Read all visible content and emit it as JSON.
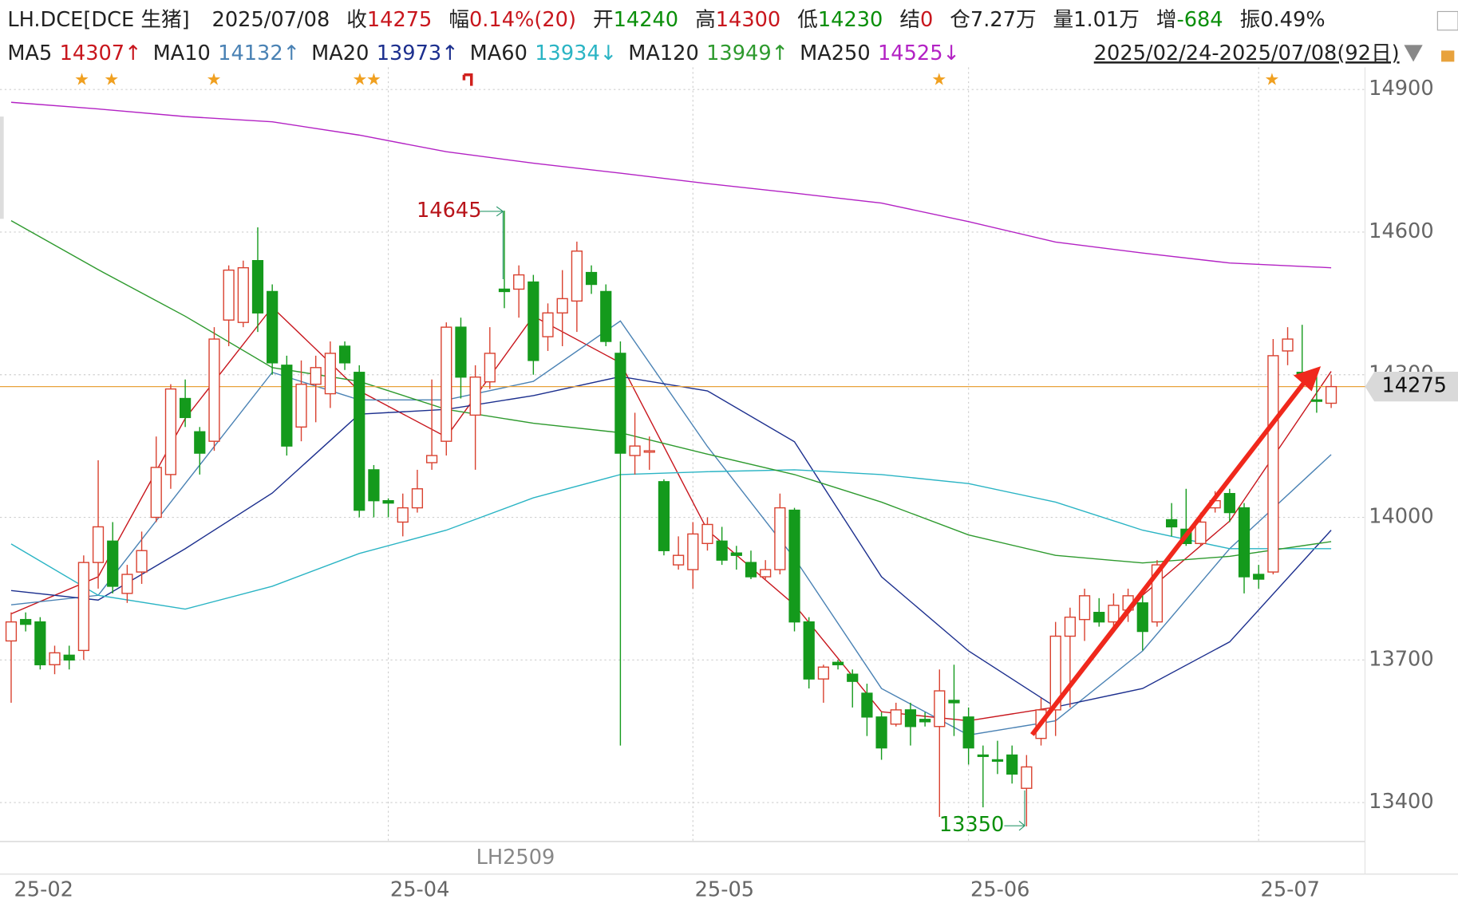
{
  "header": {
    "title": "LH.DCE[DCE 生猪]",
    "date": "2025/07/08",
    "items": [
      {
        "label": "收",
        "value": "14275",
        "color": "#c8161d"
      },
      {
        "label": "幅",
        "value": "0.14%(20)",
        "color": "#c8161d"
      },
      {
        "label": "开",
        "value": "14240",
        "color": "#0a8f0a"
      },
      {
        "label": "高",
        "value": "14300",
        "color": "#c8161d"
      },
      {
        "label": "低",
        "value": "14230",
        "color": "#0a8f0a"
      },
      {
        "label": "结",
        "value": "0",
        "color": "#c8161d"
      },
      {
        "label": "仓",
        "value": "7.27万",
        "color": "#222222"
      },
      {
        "label": "量",
        "value": "1.01万",
        "color": "#222222"
      },
      {
        "label": "增",
        "value": "-684",
        "color": "#0a8f0a"
      },
      {
        "label": "振",
        "value": "0.49%",
        "color": "#222222"
      }
    ],
    "range": "2025/02/24-2025/07/08(92日)"
  },
  "chart_data": {
    "type": "candlestick",
    "ylim": [
      13318,
      14931
    ],
    "yticks": [
      13400,
      13700,
      14000,
      14300,
      14600,
      14900
    ],
    "grid": true,
    "up_color": "#d9412f",
    "down_color": "#149a1c",
    "price_line_color": "#e8a23c",
    "categories": [
      "25-02",
      null,
      null,
      null,
      null,
      null,
      null,
      null,
      null,
      null,
      null,
      null,
      null,
      null,
      null,
      null,
      null,
      null,
      null,
      null,
      null,
      null,
      null,
      null,
      null,
      null,
      "25-04",
      null,
      null,
      null,
      null,
      null,
      null,
      null,
      null,
      null,
      null,
      null,
      null,
      null,
      null,
      null,
      null,
      null,
      null,
      null,
      null,
      "25-05",
      null,
      null,
      null,
      null,
      null,
      null,
      null,
      null,
      null,
      null,
      null,
      null,
      null,
      null,
      null,
      null,
      null,
      null,
      "25-06",
      null,
      null,
      null,
      null,
      null,
      null,
      null,
      null,
      null,
      null,
      null,
      null,
      null,
      null,
      null,
      null,
      null,
      null,
      null,
      "25-07",
      null,
      null,
      null,
      null,
      null
    ],
    "candles": {
      "open": [
        13740,
        13785,
        13780,
        13690,
        13710,
        13720,
        13905,
        13950,
        13840,
        13885,
        14000,
        14090,
        14250,
        14180,
        14160,
        14415,
        14410,
        14540,
        14475,
        14320,
        14190,
        14280,
        14260,
        14360,
        14305,
        14100,
        14035,
        13990,
        14020,
        14115,
        14160,
        14400,
        14215,
        14285,
        14480,
        14480,
        14495,
        14380,
        14430,
        14455,
        14515,
        14475,
        14345,
        14130,
        14140,
        14075,
        13900,
        13890,
        13945,
        13950,
        13925,
        13905,
        13875,
        13890,
        14015,
        13780,
        13660,
        13695,
        13670,
        13630,
        13580,
        13565,
        13595,
        13575,
        13560,
        13615,
        13580,
        13500,
        13490,
        13500,
        13430,
        13535,
        13595,
        13750,
        13785,
        13800,
        13780,
        13805,
        13820,
        13780,
        13995,
        13975,
        13945,
        14020,
        14050,
        14020,
        13880,
        13885,
        14350,
        14305,
        14247,
        14240
      ],
      "high": [
        13800,
        13800,
        13790,
        13730,
        13730,
        13920,
        14120,
        13990,
        13900,
        13970,
        14170,
        14280,
        14290,
        14190,
        14400,
        14530,
        14540,
        14610,
        14490,
        14340,
        14330,
        14340,
        14370,
        14370,
        14320,
        14110,
        14040,
        14050,
        14100,
        14290,
        14410,
        14420,
        14320,
        14400,
        14645,
        14530,
        14510,
        14450,
        14520,
        14580,
        14530,
        14490,
        14370,
        14220,
        14170,
        14080,
        13960,
        13990,
        14000,
        13980,
        13940,
        13930,
        13910,
        14050,
        14020,
        13790,
        13690,
        13700,
        13680,
        13650,
        13590,
        13610,
        13610,
        13590,
        13680,
        13690,
        13600,
        13520,
        13530,
        13520,
        13500,
        13620,
        13780,
        13810,
        13850,
        13830,
        13840,
        13850,
        13840,
        13910,
        14030,
        14060,
        14010,
        14055,
        14060,
        14030,
        13900,
        14375,
        14400,
        14405,
        14300,
        14300
      ],
      "low": [
        13610,
        13760,
        13680,
        13670,
        13680,
        13700,
        13850,
        13840,
        13820,
        13860,
        13990,
        14060,
        14190,
        14090,
        14140,
        14360,
        14400,
        14390,
        14300,
        14130,
        14160,
        14200,
        14230,
        14310,
        14000,
        14000,
        14000,
        13960,
        14010,
        14100,
        14130,
        14250,
        14100,
        14270,
        14440,
        14420,
        14300,
        14350,
        14360,
        14390,
        14470,
        14360,
        13520,
        14090,
        14100,
        13920,
        13890,
        13850,
        13930,
        13900,
        13890,
        13870,
        13870,
        13880,
        13760,
        13640,
        13610,
        13680,
        13600,
        13540,
        13490,
        13560,
        13520,
        13560,
        13370,
        13540,
        13480,
        13390,
        13460,
        13440,
        13350,
        13520,
        13540,
        13600,
        13740,
        13770,
        13770,
        13780,
        13720,
        13770,
        13960,
        13940,
        13940,
        14010,
        13990,
        13840,
        13850,
        13880,
        14320,
        14270,
        14220,
        14230
      ],
      "close": [
        13780,
        13775,
        13690,
        13715,
        13700,
        13905,
        13980,
        13855,
        13880,
        13930,
        14105,
        14270,
        14210,
        14135,
        14375,
        14520,
        14525,
        14430,
        14325,
        14150,
        14280,
        14315,
        14345,
        14325,
        14015,
        14035,
        14030,
        14020,
        14060,
        14130,
        14400,
        14295,
        14295,
        14345,
        14475,
        14510,
        14330,
        14430,
        14460,
        14560,
        14490,
        14370,
        14135,
        14150,
        14140,
        13930,
        13920,
        13965,
        13985,
        13910,
        13920,
        13875,
        13890,
        14020,
        13780,
        13660,
        13685,
        13690,
        13655,
        13580,
        13515,
        13595,
        13560,
        13570,
        13635,
        13610,
        13515,
        13498,
        13488,
        13460,
        13475,
        13595,
        13750,
        13790,
        13835,
        13780,
        13815,
        13835,
        13760,
        13900,
        13980,
        13945,
        13990,
        14035,
        14010,
        13875,
        13870,
        14340,
        14375,
        14300,
        14245,
        14275
      ]
    },
    "series": [
      {
        "name": "MA5",
        "color": "#c8161d",
        "value_label": "14307↑",
        "x": [
          0,
          6,
          12,
          18,
          24,
          30,
          36,
          42,
          48,
          54,
          60,
          66,
          72,
          78,
          84,
          91
        ],
        "values": [
          13797,
          13875,
          14208,
          14442,
          14266,
          14169,
          14423,
          14325,
          13973,
          13816,
          13591,
          13572,
          13601,
          13836,
          13992,
          14307
        ]
      },
      {
        "name": "MA10",
        "color": "#4a82b4",
        "value_label": "14132↑",
        "x": [
          0,
          6,
          12,
          18,
          24,
          30,
          36,
          42,
          48,
          54,
          60,
          66,
          72,
          78,
          84,
          91
        ],
        "values": [
          13816,
          13836,
          14071,
          14305,
          14247,
          14247,
          14286,
          14413,
          14149,
          13914,
          13640,
          13542,
          13572,
          13719,
          13934,
          14132
        ]
      },
      {
        "name": "MA20",
        "color": "#1c2f8e",
        "value_label": "13973↑",
        "x": [
          0,
          6,
          12,
          18,
          24,
          30,
          36,
          42,
          48,
          54,
          60,
          66,
          72,
          78,
          84,
          91
        ],
        "values": [
          13846,
          13826,
          13934,
          14051,
          14217,
          14227,
          14256,
          14296,
          14266,
          14159,
          13875,
          13719,
          13601,
          13640,
          13738,
          13973
        ]
      },
      {
        "name": "MA60",
        "color": "#2ab4c4",
        "value_label": "13934↓",
        "x": [
          0,
          6,
          12,
          18,
          24,
          30,
          36,
          42,
          48,
          54,
          60,
          66,
          72,
          78,
          84,
          91
        ],
        "values": [
          13944,
          13836,
          13807,
          13855,
          13924,
          13973,
          14041,
          14090,
          14096,
          14100,
          14090,
          14071,
          14032,
          13973,
          13934,
          13934
        ]
      },
      {
        "name": "MA120",
        "color": "#2e9a2e",
        "value_label": "13949↑",
        "x": [
          0,
          6,
          12,
          18,
          24,
          30,
          36,
          42,
          48,
          54,
          60,
          66,
          72,
          78,
          84,
          91
        ],
        "values": [
          14624,
          14521,
          14423,
          14315,
          14286,
          14227,
          14198,
          14178,
          14133,
          14090,
          14032,
          13963,
          13920,
          13904,
          13918,
          13949
        ]
      },
      {
        "name": "MA250",
        "color": "#b322c4",
        "value_label": "14525↓",
        "x": [
          0,
          6,
          12,
          18,
          24,
          30,
          36,
          42,
          48,
          54,
          60,
          66,
          72,
          78,
          84,
          91
        ],
        "values": [
          14873,
          14859,
          14843,
          14832,
          14804,
          14769,
          14745,
          14724,
          14702,
          14682,
          14661,
          14622,
          14579,
          14556,
          14535,
          14525
        ]
      }
    ],
    "annotations": {
      "high_label": "14645",
      "low_label": "13350",
      "contract": "LH2509"
    }
  }
}
